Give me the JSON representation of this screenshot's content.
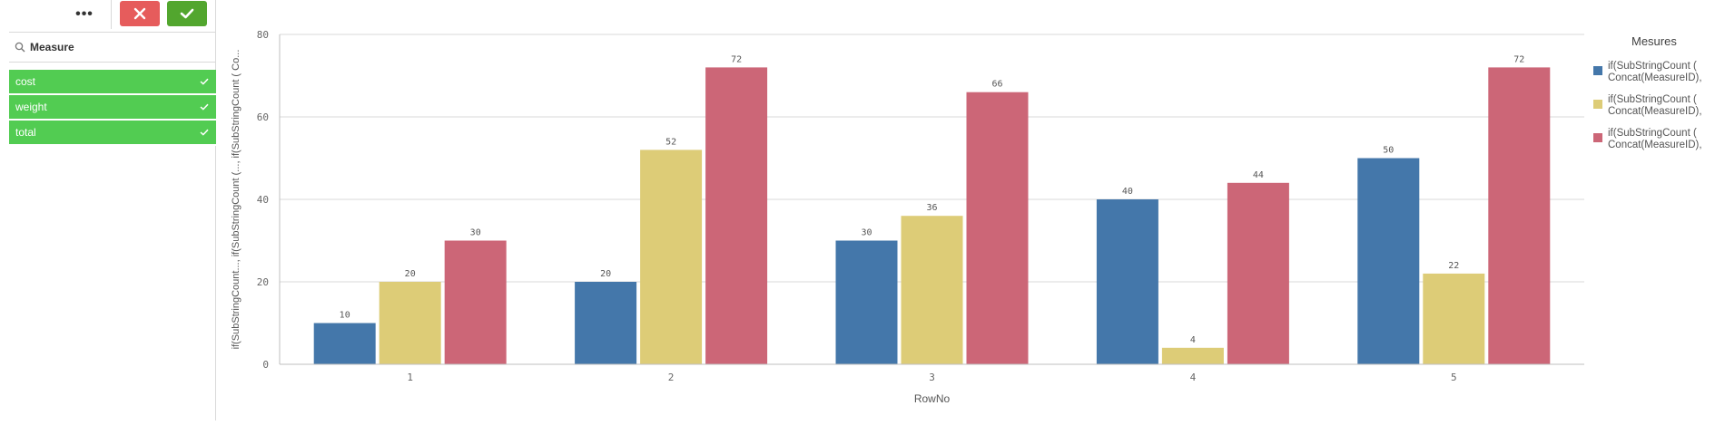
{
  "toolbar": {
    "more_label": "•••",
    "cancel_label": "✕",
    "confirm_label": "✓"
  },
  "filter_panel": {
    "search_label": "Measure",
    "items": [
      {
        "label": "cost",
        "selected": true
      },
      {
        "label": "weight",
        "selected": true
      },
      {
        "label": "total",
        "selected": true
      }
    ],
    "selected_color": "#52cc52"
  },
  "legend": {
    "title": "Mesures",
    "items": [
      {
        "label": "if(SubStringCount (\nConcat(MeasureID),",
        "color": "#4477aa"
      },
      {
        "label": "if(SubStringCount (\nConcat(MeasureID),",
        "color": "#ddcc77"
      },
      {
        "label": "if(SubStringCount (\nConcat(MeasureID),",
        "color": "#cc6677"
      }
    ]
  },
  "chart_data": {
    "type": "bar",
    "xlabel": "RowNo",
    "ylabel": "if(SubStringCount..., if(SubStringCount (..., if(SubStringCount ( Co...",
    "categories": [
      "1",
      "2",
      "3",
      "4",
      "5"
    ],
    "ylim": [
      0,
      80
    ],
    "yticks": [
      0,
      20,
      40,
      60,
      80
    ],
    "grid": true,
    "legend_position": "right",
    "series": [
      {
        "color": "#4477aa",
        "values": [
          10,
          20,
          30,
          40,
          50
        ]
      },
      {
        "color": "#ddcc77",
        "values": [
          20,
          52,
          36,
          4,
          22
        ]
      },
      {
        "color": "#cc6677",
        "values": [
          30,
          72,
          66,
          44,
          72
        ]
      }
    ]
  }
}
